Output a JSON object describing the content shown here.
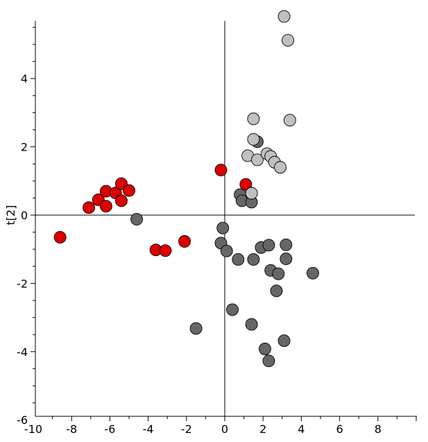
{
  "chart_data": {
    "type": "scatter",
    "title": "",
    "xlabel": "",
    "ylabel": "t[2]",
    "xlim": [
      -10,
      10
    ],
    "ylim": [
      -6,
      6
    ],
    "x_ticks": [
      -10,
      -8,
      -6,
      -4,
      -2,
      0,
      2,
      4,
      6,
      8
    ],
    "y_ticks": [
      -6,
      -4,
      -2,
      0,
      2,
      4
    ],
    "series": [
      {
        "color": "#dd0000",
        "points": [
          [
            -8.6,
            -0.65
          ],
          [
            -7.1,
            0.22
          ],
          [
            -6.6,
            0.45
          ],
          [
            -6.2,
            0.7
          ],
          [
            -6.2,
            0.26
          ],
          [
            -5.7,
            0.65
          ],
          [
            -5.4,
            0.92
          ],
          [
            -5.4,
            0.42
          ],
          [
            -5.0,
            0.72
          ],
          [
            -3.6,
            -1.02
          ],
          [
            -3.1,
            -1.04
          ],
          [
            -2.1,
            -0.77
          ],
          [
            -0.2,
            1.32
          ],
          [
            1.1,
            0.9
          ]
        ]
      },
      {
        "color": "#666666",
        "points": [
          [
            -4.6,
            -0.12
          ],
          [
            0.8,
            0.6
          ],
          [
            0.9,
            0.42
          ],
          [
            1.4,
            0.38
          ],
          [
            1.7,
            2.15
          ],
          [
            -0.1,
            -0.38
          ],
          [
            -0.2,
            -0.82
          ],
          [
            0.1,
            -1.05
          ],
          [
            0.7,
            -1.3
          ],
          [
            1.5,
            -1.3
          ],
          [
            1.9,
            -0.95
          ],
          [
            2.3,
            -0.88
          ],
          [
            3.2,
            -0.87
          ],
          [
            3.2,
            -1.28
          ],
          [
            2.4,
            -1.62
          ],
          [
            2.8,
            -1.72
          ],
          [
            4.6,
            -1.7
          ],
          [
            2.7,
            -2.22
          ],
          [
            0.4,
            -2.77
          ],
          [
            -1.5,
            -3.32
          ],
          [
            1.4,
            -3.2
          ],
          [
            2.1,
            -3.92
          ],
          [
            3.1,
            -3.68
          ],
          [
            2.3,
            -4.27
          ]
        ]
      },
      {
        "color": "#c0c0c0",
        "points": [
          [
            3.1,
            5.82
          ],
          [
            3.3,
            5.12
          ],
          [
            1.5,
            2.82
          ],
          [
            3.4,
            2.78
          ],
          [
            1.5,
            2.22
          ],
          [
            1.2,
            1.74
          ],
          [
            1.7,
            1.62
          ],
          [
            2.2,
            1.8
          ],
          [
            2.4,
            1.72
          ],
          [
            2.6,
            1.55
          ],
          [
            2.9,
            1.4
          ],
          [
            1.4,
            0.64
          ]
        ]
      }
    ]
  }
}
